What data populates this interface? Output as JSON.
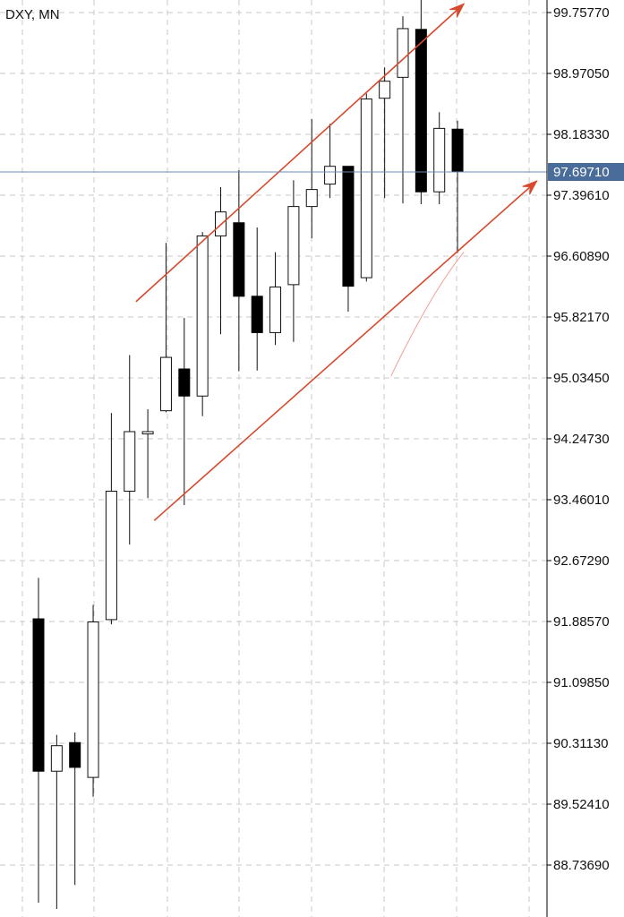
{
  "chart_data": {
    "type": "candlestick",
    "symbol_label": "DXY, MN",
    "current_price": 97.6971,
    "current_price_label": "97.69710",
    "y_ticks": [
      "99.75770",
      "98.97050",
      "98.18330",
      "97.39610",
      "96.60890",
      "95.82170",
      "95.03450",
      "94.24730",
      "93.46010",
      "92.67290",
      "91.88570",
      "91.09850",
      "90.31130",
      "89.52410",
      "88.73690"
    ],
    "ylim": [
      88.08,
      100.2
    ],
    "grid": true,
    "colors": {
      "up_body": "#ffffff",
      "down_body": "#000000",
      "current_price_line": "#6c8cb5",
      "current_price_box": "#4a6c9b",
      "trendline": "#d64a2e"
    },
    "candles": [
      {
        "o": 91.92,
        "h": 92.45,
        "l": 88.25,
        "c": 89.95
      },
      {
        "o": 89.95,
        "h": 90.42,
        "l": 88.17,
        "c": 90.28
      },
      {
        "o": 90.32,
        "h": 90.45,
        "l": 88.48,
        "c": 90.0
      },
      {
        "o": 89.87,
        "h": 92.1,
        "l": 89.62,
        "c": 91.88
      },
      {
        "o": 91.91,
        "h": 94.58,
        "l": 91.85,
        "c": 93.57
      },
      {
        "o": 93.57,
        "h": 95.33,
        "l": 92.88,
        "c": 94.34
      },
      {
        "o": 94.31,
        "h": 94.63,
        "l": 93.48,
        "c": 94.34
      },
      {
        "o": 94.61,
        "h": 96.78,
        "l": 94.59,
        "c": 95.3
      },
      {
        "o": 95.15,
        "h": 95.81,
        "l": 93.39,
        "c": 94.8
      },
      {
        "o": 94.8,
        "h": 96.92,
        "l": 94.54,
        "c": 96.87
      },
      {
        "o": 96.87,
        "h": 97.5,
        "l": 95.6,
        "c": 97.18
      },
      {
        "o": 97.04,
        "h": 97.72,
        "l": 95.12,
        "c": 96.09
      },
      {
        "o": 96.09,
        "h": 96.98,
        "l": 95.13,
        "c": 95.62
      },
      {
        "o": 95.62,
        "h": 96.66,
        "l": 95.46,
        "c": 96.21
      },
      {
        "o": 96.24,
        "h": 97.59,
        "l": 95.5,
        "c": 97.25
      },
      {
        "o": 97.25,
        "h": 98.38,
        "l": 96.84,
        "c": 97.47
      },
      {
        "o": 97.54,
        "h": 98.32,
        "l": 97.36,
        "c": 97.77
      },
      {
        "o": 97.77,
        "h": 97.77,
        "l": 95.89,
        "c": 96.22
      },
      {
        "o": 96.33,
        "h": 98.71,
        "l": 96.28,
        "c": 98.64
      },
      {
        "o": 98.65,
        "h": 99.05,
        "l": 97.36,
        "c": 98.87
      },
      {
        "o": 98.92,
        "h": 99.71,
        "l": 97.29,
        "c": 99.55
      },
      {
        "o": 99.54,
        "h": 99.92,
        "l": 97.28,
        "c": 97.44
      },
      {
        "o": 97.44,
        "h": 98.47,
        "l": 97.28,
        "c": 98.26
      },
      {
        "o": 98.25,
        "h": 98.36,
        "l": 96.65,
        "c": 97.7
      }
    ],
    "trendlines": [
      {
        "from_candle": 5.35,
        "from_price": 96.02,
        "to_candle": 23.35,
        "to_price": 99.87,
        "arrow": true
      },
      {
        "from_candle": 6.35,
        "from_price": 93.19,
        "to_candle": 27.35,
        "to_price": 97.58,
        "arrow": true
      },
      {
        "from_candle": 19.35,
        "from_price": 95.06,
        "to_candle": 23.35,
        "to_price": 96.66,
        "arrow": false,
        "thin": true
      }
    ]
  }
}
